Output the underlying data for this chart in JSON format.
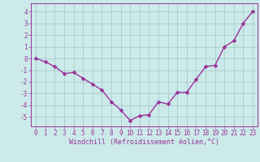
{
  "x": [
    0,
    1,
    2,
    3,
    4,
    5,
    6,
    7,
    8,
    9,
    10,
    11,
    12,
    13,
    14,
    15,
    16,
    17,
    18,
    19,
    20,
    21,
    22,
    23
  ],
  "y": [
    0.0,
    -0.3,
    -0.7,
    -1.3,
    -1.2,
    -1.7,
    -2.2,
    -2.7,
    -3.7,
    -4.4,
    -5.3,
    -4.9,
    -4.8,
    -3.7,
    -3.9,
    -2.9,
    -2.9,
    -1.8,
    -0.7,
    -0.6,
    1.0,
    1.5,
    3.0,
    4.0
  ],
  "line_color": "#993399",
  "marker": "D",
  "markersize": 2.5,
  "linewidth": 1.0,
  "bg_color": "#cceaea",
  "grid_color": "#aacccc",
  "xlabel": "Windchill (Refroidissement éolien,°C)",
  "xlabel_color": "#993399",
  "xlabel_fontsize": 6.0,
  "tick_color": "#993399",
  "tick_fontsize": 5.5,
  "ytick_labels": [
    "-5",
    "-4",
    "-3",
    "-2",
    "-1",
    "0",
    "1",
    "2",
    "3",
    "4"
  ],
  "ytick_values": [
    -5,
    -4,
    -3,
    -2,
    -1,
    0,
    1,
    2,
    3,
    4
  ],
  "ylim": [
    -5.8,
    4.7
  ],
  "xlim": [
    -0.5,
    23.5
  ],
  "spine_color": "#993399"
}
